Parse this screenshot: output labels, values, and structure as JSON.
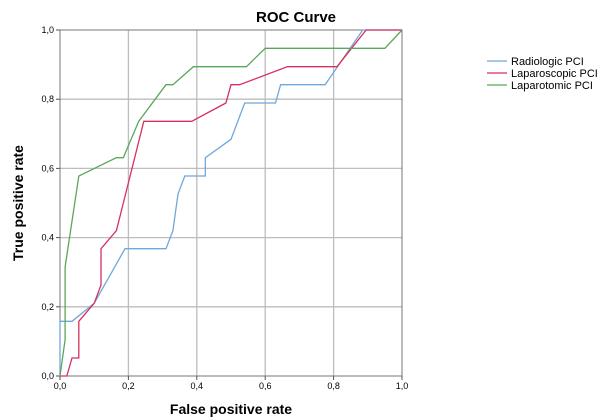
{
  "chart_data": {
    "type": "line",
    "title": "ROC Curve",
    "xlabel": "False positive rate",
    "ylabel": "True positive rate",
    "xlim": [
      0,
      1
    ],
    "ylim": [
      0,
      1
    ],
    "xticks": [
      "0,0",
      "0,2",
      "0,4",
      "0,6",
      "0,8",
      "1,0"
    ],
    "yticks": [
      "0,0",
      "0,2",
      "0,4",
      "0,6",
      "0,8",
      "1,0"
    ],
    "grid": true,
    "legend_position": "right",
    "series": [
      {
        "name": "Radiologic PCI",
        "color": "#6fa8dc",
        "points": [
          [
            0,
            0
          ],
          [
            0,
            0.158
          ],
          [
            0.035,
            0.158
          ],
          [
            0.035,
            0.158
          ],
          [
            0.1,
            0.21
          ],
          [
            0.19,
            0.368
          ],
          [
            0.31,
            0.368
          ],
          [
            0.33,
            0.42
          ],
          [
            0.345,
            0.526
          ],
          [
            0.365,
            0.578
          ],
          [
            0.425,
            0.578
          ],
          [
            0.425,
            0.631
          ],
          [
            0.5,
            0.684
          ],
          [
            0.54,
            0.789
          ],
          [
            0.63,
            0.789
          ],
          [
            0.645,
            0.842
          ],
          [
            0.775,
            0.842
          ],
          [
            0.885,
            1.0
          ],
          [
            1.0,
            1.0
          ]
        ]
      },
      {
        "name": "Laparoscopic PCI",
        "color": "#d6305f",
        "points": [
          [
            0,
            0
          ],
          [
            0.02,
            0
          ],
          [
            0.035,
            0.052
          ],
          [
            0.055,
            0.052
          ],
          [
            0.055,
            0.158
          ],
          [
            0.1,
            0.21
          ],
          [
            0.12,
            0.263
          ],
          [
            0.12,
            0.368
          ],
          [
            0.165,
            0.42
          ],
          [
            0.245,
            0.736
          ],
          [
            0.385,
            0.736
          ],
          [
            0.485,
            0.789
          ],
          [
            0.5,
            0.842
          ],
          [
            0.525,
            0.842
          ],
          [
            0.665,
            0.894
          ],
          [
            0.81,
            0.894
          ],
          [
            0.895,
            1.0
          ],
          [
            1.0,
            1.0
          ]
        ]
      },
      {
        "name": "Laparotomic PCI",
        "color": "#5aa75a",
        "points": [
          [
            0,
            0
          ],
          [
            0.015,
            0.105
          ],
          [
            0.015,
            0.315
          ],
          [
            0.055,
            0.578
          ],
          [
            0.165,
            0.631
          ],
          [
            0.185,
            0.631
          ],
          [
            0.23,
            0.736
          ],
          [
            0.31,
            0.842
          ],
          [
            0.33,
            0.842
          ],
          [
            0.39,
            0.894
          ],
          [
            0.545,
            0.894
          ],
          [
            0.6,
            0.947
          ],
          [
            0.95,
            0.947
          ],
          [
            1.0,
            1.0
          ]
        ]
      }
    ]
  }
}
